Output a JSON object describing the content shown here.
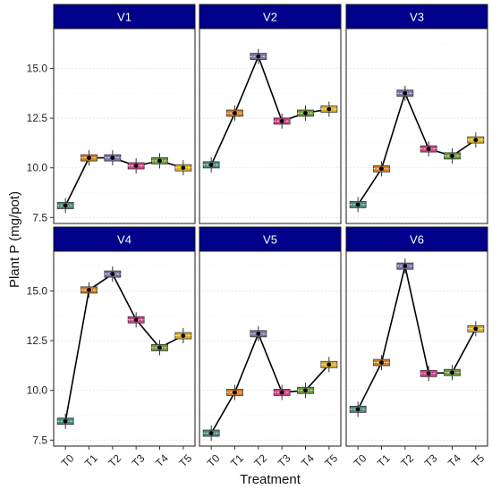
{
  "chart_data": {
    "type": "box",
    "xlabel": "Treatment",
    "ylabel": "Plant P (mg/pot)",
    "ylim": [
      7.2,
      17.0
    ],
    "yticks": [
      "7.5",
      "10.0",
      "12.5",
      "15.0"
    ],
    "categories": [
      "T0",
      "T1",
      "T2",
      "T3",
      "T4",
      "T5"
    ],
    "grid": true,
    "legend": "none",
    "strip_color": "#00008B",
    "box_colors": {
      "T0": "#4E8B80",
      "T1": "#D48224",
      "T2": "#7B78A8",
      "T3": "#D0458B",
      "T4": "#6E9B3C",
      "T5": "#D9B22B"
    },
    "panels": [
      {
        "name": "V1",
        "values": [
          8.1,
          10.5,
          10.5,
          10.1,
          10.35,
          10.0
        ]
      },
      {
        "name": "V2",
        "values": [
          10.15,
          12.75,
          15.6,
          12.35,
          12.75,
          12.95
        ]
      },
      {
        "name": "V3",
        "values": [
          8.15,
          9.95,
          13.75,
          10.95,
          10.6,
          11.4
        ]
      },
      {
        "name": "V4",
        "values": [
          8.45,
          15.05,
          15.85,
          13.55,
          12.15,
          12.75
        ]
      },
      {
        "name": "V5",
        "values": [
          7.85,
          9.9,
          12.85,
          9.9,
          10.0,
          11.3
        ]
      },
      {
        "name": "V6",
        "values": [
          9.05,
          11.4,
          16.25,
          10.85,
          10.9,
          13.1
        ]
      }
    ]
  }
}
